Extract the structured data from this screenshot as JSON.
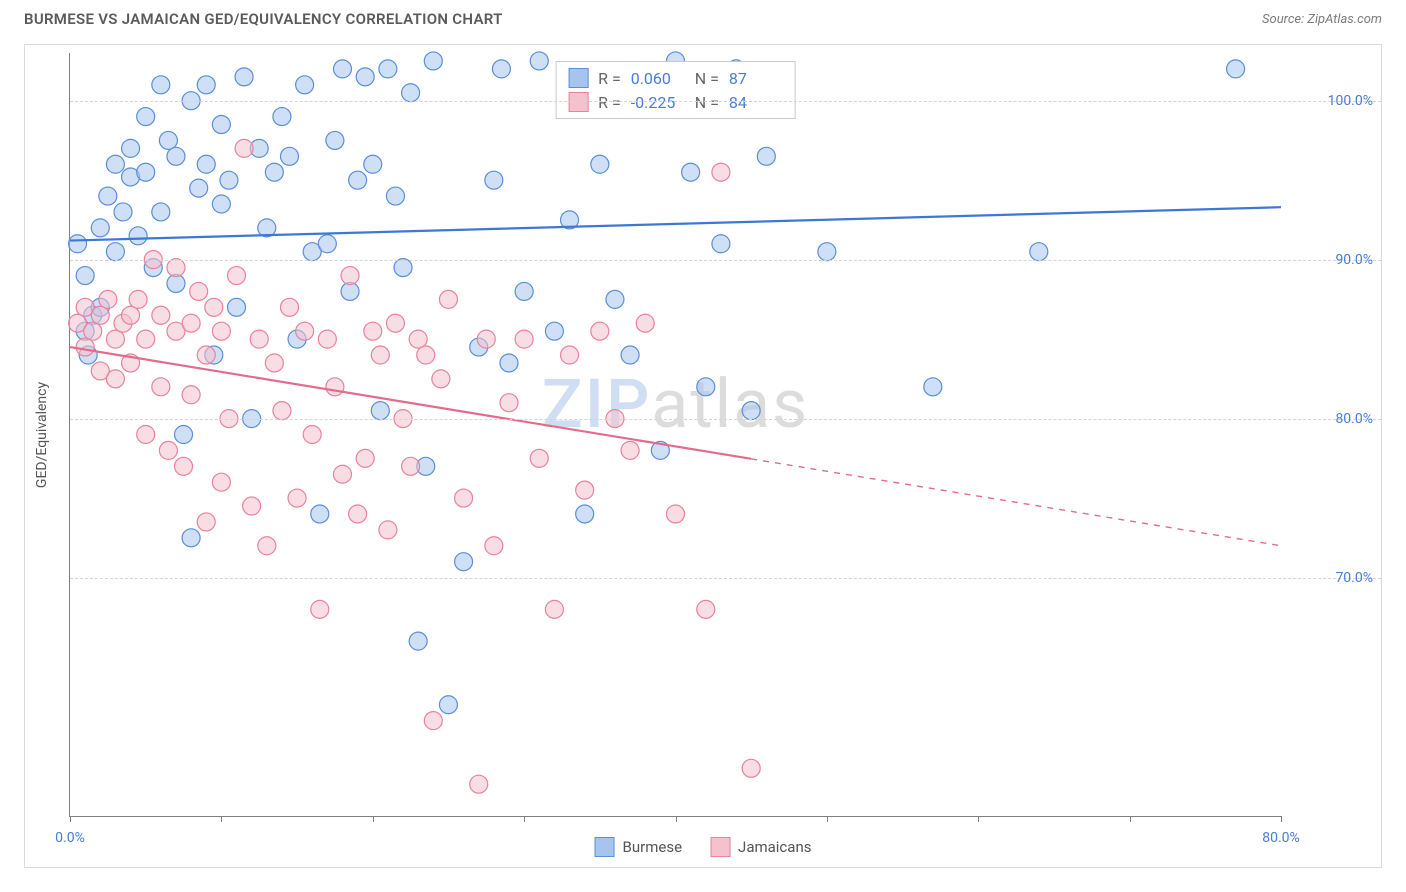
{
  "header": {
    "title": "BURMESE VS JAMAICAN GED/EQUIVALENCY CORRELATION CHART",
    "source": "Source: ZipAtlas.com"
  },
  "watermark": {
    "part1": "ZIP",
    "part2": "atlas"
  },
  "chart": {
    "type": "scatter",
    "y_axis_label": "GED/Equivalency",
    "xlim": [
      0,
      80
    ],
    "ylim": [
      55,
      103
    ],
    "x_ticks": [
      0,
      10,
      20,
      30,
      40,
      50,
      60,
      70,
      80
    ],
    "x_tick_labels_shown": {
      "0": "0.0%",
      "80": "80.0%"
    },
    "y_ticks": [
      70,
      80,
      90,
      100
    ],
    "y_tick_labels": [
      "70.0%",
      "80.0%",
      "90.0%",
      "100.0%"
    ],
    "grid_color": "#d5d5d5",
    "axis_color": "#808080",
    "background_color": "#ffffff",
    "marker_radius": 9,
    "marker_opacity": 0.55,
    "line_width": 2.2,
    "series": [
      {
        "name": "Burmese",
        "fill_color": "#a7c5ec",
        "stroke_color": "#5a8fd6",
        "line_color": "#3d78d6",
        "R": "0.060",
        "N": "87",
        "trend": {
          "x1": 0,
          "y1": 91.2,
          "x2": 80,
          "y2": 93.3,
          "dashed_from": null
        },
        "points": [
          [
            0.5,
            91
          ],
          [
            1,
            85.5
          ],
          [
            1,
            89
          ],
          [
            1.2,
            84
          ],
          [
            1.5,
            86.5
          ],
          [
            2,
            92
          ],
          [
            2,
            87
          ],
          [
            2.5,
            94
          ],
          [
            3,
            90.5
          ],
          [
            3,
            96
          ],
          [
            3.5,
            93
          ],
          [
            4,
            97
          ],
          [
            4,
            95.2
          ],
          [
            4.5,
            91.5
          ],
          [
            5,
            99
          ],
          [
            5,
            95.5
          ],
          [
            5.5,
            89.5
          ],
          [
            6,
            101
          ],
          [
            6,
            93
          ],
          [
            6.5,
            97.5
          ],
          [
            7,
            96.5
          ],
          [
            7,
            88.5
          ],
          [
            7.5,
            79
          ],
          [
            8,
            100
          ],
          [
            8,
            72.5
          ],
          [
            8.5,
            94.5
          ],
          [
            9,
            101
          ],
          [
            9,
            96
          ],
          [
            9.5,
            84
          ],
          [
            10,
            98.5
          ],
          [
            10,
            93.5
          ],
          [
            10.5,
            95
          ],
          [
            11,
            87
          ],
          [
            11.5,
            101.5
          ],
          [
            12,
            80
          ],
          [
            12.5,
            97
          ],
          [
            13,
            92
          ],
          [
            13.5,
            95.5
          ],
          [
            14,
            99
          ],
          [
            14.5,
            96.5
          ],
          [
            15,
            85
          ],
          [
            15.5,
            101
          ],
          [
            16,
            90.5
          ],
          [
            16.5,
            74
          ],
          [
            17,
            91
          ],
          [
            17.5,
            97.5
          ],
          [
            18,
            102
          ],
          [
            18.5,
            88
          ],
          [
            19,
            95
          ],
          [
            19.5,
            101.5
          ],
          [
            20,
            96
          ],
          [
            20.5,
            80.5
          ],
          [
            21,
            102
          ],
          [
            21.5,
            94
          ],
          [
            22,
            89.5
          ],
          [
            22.5,
            100.5
          ],
          [
            23,
            66
          ],
          [
            23.5,
            77
          ],
          [
            24,
            102.5
          ],
          [
            25,
            62
          ],
          [
            26,
            71
          ],
          [
            27,
            84.5
          ],
          [
            28,
            95
          ],
          [
            28.5,
            102
          ],
          [
            29,
            83.5
          ],
          [
            30,
            88
          ],
          [
            31,
            102.5
          ],
          [
            32,
            85.5
          ],
          [
            33,
            92.5
          ],
          [
            34,
            74
          ],
          [
            35,
            96
          ],
          [
            36,
            87.5
          ],
          [
            37,
            84
          ],
          [
            38,
            100
          ],
          [
            39,
            78
          ],
          [
            40,
            102.5
          ],
          [
            41,
            95.5
          ],
          [
            42,
            82
          ],
          [
            43,
            91
          ],
          [
            44,
            102
          ],
          [
            45,
            80.5
          ],
          [
            46,
            96.5
          ],
          [
            50,
            90.5
          ],
          [
            57,
            82
          ],
          [
            64,
            90.5
          ],
          [
            77,
            102
          ]
        ]
      },
      {
        "name": "Jamaicans",
        "fill_color": "#f4c1cd",
        "stroke_color": "#e8829d",
        "line_color": "#e36b8c",
        "R": "-0.225",
        "N": "84",
        "trend": {
          "x1": 0,
          "y1": 84.5,
          "x2": 80,
          "y2": 72.0,
          "dashed_from": 45
        },
        "points": [
          [
            0.5,
            86
          ],
          [
            1,
            87
          ],
          [
            1,
            84.5
          ],
          [
            1.5,
            85.5
          ],
          [
            2,
            86.5
          ],
          [
            2,
            83
          ],
          [
            2.5,
            87.5
          ],
          [
            3,
            85
          ],
          [
            3,
            82.5
          ],
          [
            3.5,
            86
          ],
          [
            4,
            86.5
          ],
          [
            4,
            83.5
          ],
          [
            4.5,
            87.5
          ],
          [
            5,
            79
          ],
          [
            5,
            85
          ],
          [
            5.5,
            90
          ],
          [
            6,
            82
          ],
          [
            6,
            86.5
          ],
          [
            6.5,
            78
          ],
          [
            7,
            85.5
          ],
          [
            7,
            89.5
          ],
          [
            7.5,
            77
          ],
          [
            8,
            86
          ],
          [
            8,
            81.5
          ],
          [
            8.5,
            88
          ],
          [
            9,
            73.5
          ],
          [
            9,
            84
          ],
          [
            9.5,
            87
          ],
          [
            10,
            76
          ],
          [
            10,
            85.5
          ],
          [
            10.5,
            80
          ],
          [
            11,
            89
          ],
          [
            11.5,
            97
          ],
          [
            12,
            74.5
          ],
          [
            12.5,
            85
          ],
          [
            13,
            72
          ],
          [
            13.5,
            83.5
          ],
          [
            14,
            80.5
          ],
          [
            14.5,
            87
          ],
          [
            15,
            75
          ],
          [
            15.5,
            85.5
          ],
          [
            16,
            79
          ],
          [
            16.5,
            68
          ],
          [
            17,
            85
          ],
          [
            17.5,
            82
          ],
          [
            18,
            76.5
          ],
          [
            18.5,
            89
          ],
          [
            19,
            74
          ],
          [
            19.5,
            77.5
          ],
          [
            20,
            85.5
          ],
          [
            20.5,
            84
          ],
          [
            21,
            73
          ],
          [
            21.5,
            86
          ],
          [
            22,
            80
          ],
          [
            22.5,
            77
          ],
          [
            23,
            85
          ],
          [
            23.5,
            84
          ],
          [
            24,
            61
          ],
          [
            24.5,
            82.5
          ],
          [
            25,
            87.5
          ],
          [
            26,
            75
          ],
          [
            27,
            57
          ],
          [
            27.5,
            85
          ],
          [
            28,
            72
          ],
          [
            29,
            81
          ],
          [
            30,
            85
          ],
          [
            31,
            77.5
          ],
          [
            32,
            68
          ],
          [
            33,
            84
          ],
          [
            34,
            75.5
          ],
          [
            35,
            85.5
          ],
          [
            36,
            80
          ],
          [
            37,
            78
          ],
          [
            38,
            86
          ],
          [
            40,
            74
          ],
          [
            42,
            68
          ],
          [
            43,
            95.5
          ],
          [
            45,
            58
          ]
        ]
      }
    ]
  },
  "legend": {
    "items": [
      {
        "label": "Burmese",
        "fill": "#a7c5ec",
        "stroke": "#5a8fd6"
      },
      {
        "label": "Jamaicans",
        "fill": "#f4c1cd",
        "stroke": "#e8829d"
      }
    ]
  },
  "stats_box": {
    "rows": [
      {
        "swatch_fill": "#a7c5ec",
        "swatch_stroke": "#5a8fd6",
        "R_label": "R =",
        "R": "0.060",
        "N_label": "N =",
        "N": "87"
      },
      {
        "swatch_fill": "#f4c1cd",
        "swatch_stroke": "#e8829d",
        "R_label": "R =",
        "R": "-0.225",
        "N_label": "N =",
        "N": "84"
      }
    ]
  }
}
